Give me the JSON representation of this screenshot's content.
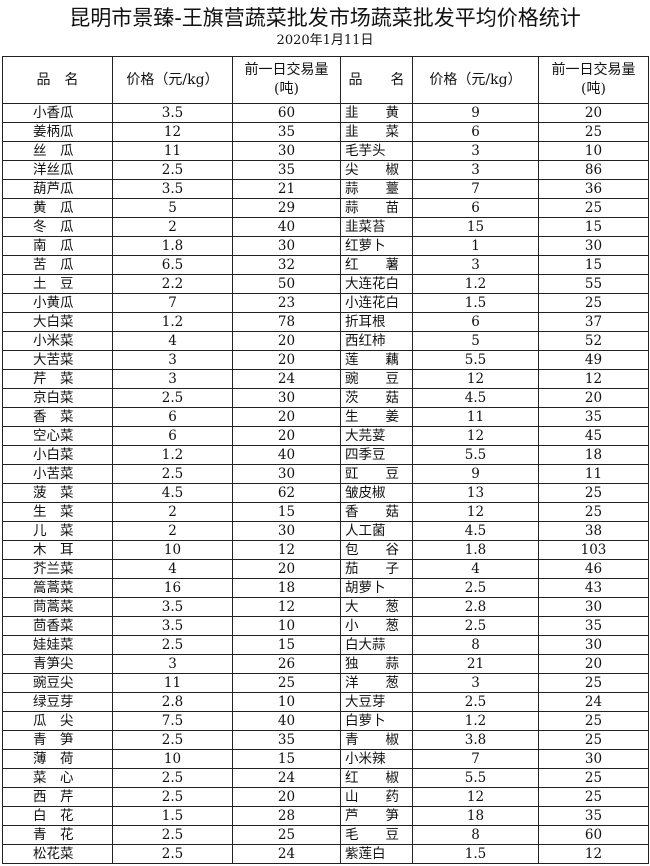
{
  "title": "昆明市景臻-王旗营蔬菜批发市场蔬菜批发平均价格统计",
  "date": "2020年1月11日",
  "headers": [
    "品　名",
    "价格（元/kg）",
    "前一日交易量\n(吨)",
    "品　　名",
    "价格（元/kg）",
    "前一日交易量\n(吨)"
  ],
  "rows": [
    [
      [
        "小香瓜",
        "3.5",
        "60"
      ],
      [
        "韭　　黄",
        "9",
        "20"
      ]
    ],
    [
      [
        "姜柄瓜",
        "12",
        "35"
      ],
      [
        "韭　　菜",
        "6",
        "25"
      ]
    ],
    [
      [
        "丝　瓜",
        "11",
        "30"
      ],
      [
        "毛芋头",
        "3",
        "10"
      ]
    ],
    [
      [
        "洋丝瓜",
        "2.5",
        "35"
      ],
      [
        "尖　　椒",
        "3",
        "86"
      ]
    ],
    [
      [
        "葫芦瓜",
        "3.5",
        "21"
      ],
      [
        "蒜　　薹",
        "7",
        "36"
      ]
    ],
    [
      [
        "黄　瓜",
        "5",
        "29"
      ],
      [
        "蒜　　苗",
        "6",
        "25"
      ]
    ],
    [
      [
        "冬　瓜",
        "2",
        "40"
      ],
      [
        "韭菜苔",
        "15",
        "15"
      ]
    ],
    [
      [
        "南　瓜",
        "1.8",
        "30"
      ],
      [
        "红萝卜",
        "1",
        "30"
      ]
    ],
    [
      [
        "苦　瓜",
        "6.5",
        "32"
      ],
      [
        "红　　薯",
        "3",
        "15"
      ]
    ],
    [
      [
        "土　豆",
        "2.2",
        "50"
      ],
      [
        "大连花白",
        "1.2",
        "55"
      ]
    ],
    [
      [
        "小黄瓜",
        "7",
        "23"
      ],
      [
        "小连花白",
        "1.5",
        "25"
      ]
    ],
    [
      [
        "大白菜",
        "1.2",
        "78"
      ],
      [
        "折耳根",
        "6",
        "37"
      ]
    ],
    [
      [
        "小米菜",
        "4",
        "20"
      ],
      [
        "西红柿",
        "5",
        "52"
      ]
    ],
    [
      [
        "大苦菜",
        "3",
        "20"
      ],
      [
        "莲　　藕",
        "5.5",
        "49"
      ]
    ],
    [
      [
        "芹　菜",
        "3",
        "24"
      ],
      [
        "豌　　豆",
        "12",
        "12"
      ]
    ],
    [
      [
        "京白菜",
        "2.5",
        "30"
      ],
      [
        "茨　　菇",
        "4.5",
        "20"
      ]
    ],
    [
      [
        "香　菜",
        "6",
        "20"
      ],
      [
        "生　　姜",
        "11",
        "35"
      ]
    ],
    [
      [
        "空心菜",
        "6",
        "20"
      ],
      [
        "大芫荽",
        "12",
        "45"
      ]
    ],
    [
      [
        "小白菜",
        "1.2",
        "40"
      ],
      [
        "四季豆",
        "5.5",
        "18"
      ]
    ],
    [
      [
        "小苦菜",
        "2.5",
        "30"
      ],
      [
        "豇　　豆",
        "9",
        "11"
      ]
    ],
    [
      [
        "菠　菜",
        "4.5",
        "62"
      ],
      [
        "皱皮椒",
        "13",
        "25"
      ]
    ],
    [
      [
        "生　菜",
        "2",
        "15"
      ],
      [
        "香　　菇",
        "12",
        "25"
      ]
    ],
    [
      [
        "儿　菜",
        "2",
        "30"
      ],
      [
        "人工菌",
        "4.5",
        "38"
      ]
    ],
    [
      [
        "木　耳",
        "10",
        "12"
      ],
      [
        "包　　谷",
        "1.8",
        "103"
      ]
    ],
    [
      [
        "芥兰菜",
        "4",
        "20"
      ],
      [
        "茄　　子",
        "4",
        "46"
      ]
    ],
    [
      [
        "篙蒿菜",
        "16",
        "18"
      ],
      [
        "胡萝卜",
        "2.5",
        "43"
      ]
    ],
    [
      [
        "茼蒿菜",
        "3.5",
        "12"
      ],
      [
        "大　　葱",
        "2.8",
        "30"
      ]
    ],
    [
      [
        "茴香菜",
        "3.5",
        "10"
      ],
      [
        "小　　葱",
        "2.5",
        "35"
      ]
    ],
    [
      [
        "娃娃菜",
        "2.5",
        "15"
      ],
      [
        "白大蒜",
        "8",
        "30"
      ]
    ],
    [
      [
        "青笋尖",
        "3",
        "26"
      ],
      [
        "独　　蒜",
        "21",
        "20"
      ]
    ],
    [
      [
        "豌豆尖",
        "11",
        "25"
      ],
      [
        "洋　　葱",
        "3",
        "25"
      ]
    ],
    [
      [
        "绿豆芽",
        "2.8",
        "10"
      ],
      [
        "大豆芽",
        "2.5",
        "24"
      ]
    ],
    [
      [
        "瓜　尖",
        "7.5",
        "40"
      ],
      [
        "白萝卜",
        "1.2",
        "25"
      ]
    ],
    [
      [
        "青　笋",
        "2.5",
        "35"
      ],
      [
        "青　　椒",
        "3.8",
        "25"
      ]
    ],
    [
      [
        "薄　荷",
        "10",
        "15"
      ],
      [
        "小米辣",
        "7",
        "30"
      ]
    ],
    [
      [
        "菜　心",
        "2.5",
        "24"
      ],
      [
        "红　　椒",
        "5.5",
        "25"
      ]
    ],
    [
      [
        "西　芹",
        "2.5",
        "20"
      ],
      [
        "山　　药",
        "12",
        "25"
      ]
    ],
    [
      [
        "白　花",
        "1.5",
        "28"
      ],
      [
        "芦　　笋",
        "18",
        "35"
      ]
    ],
    [
      [
        "青　花",
        "2.5",
        "25"
      ],
      [
        "毛　　豆",
        "8",
        "60"
      ]
    ],
    [
      [
        "松花菜",
        "2.5",
        "24"
      ],
      [
        "紫莲白",
        "1.5",
        "12"
      ]
    ]
  ]
}
